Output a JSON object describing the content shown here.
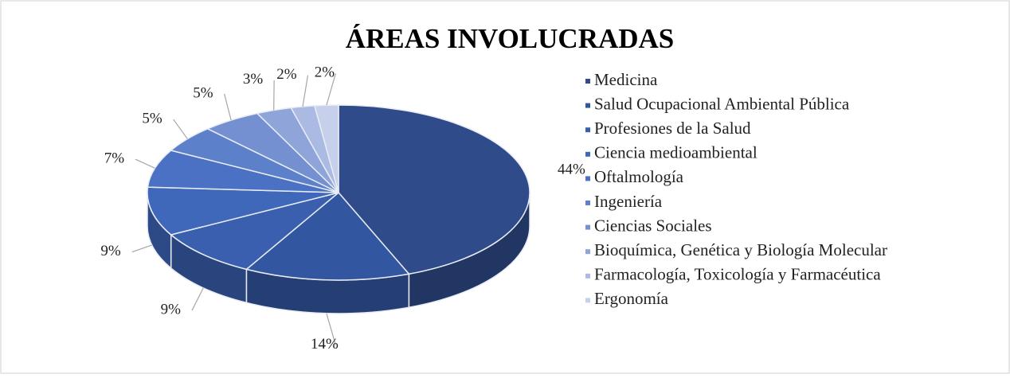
{
  "chart_data": {
    "type": "pie3d",
    "title": "ÁREAS INVOLUCRADAS",
    "categories": [
      "Medicina",
      "Salud Ocupacional Ambiental Pública",
      "Profesiones de la Salud",
      "Ciencia medioambiental",
      "Oftalmología",
      "Ingeniería",
      "Ciencias Sociales",
      "Bioquímica, Genética y Biología Molecular",
      "Farmacología, Toxicología y Farmacéutica",
      "Ergonomía"
    ],
    "values": [
      44,
      14,
      9,
      9,
      7,
      5,
      5,
      3,
      2,
      2
    ],
    "value_labels": [
      "44%",
      "14%",
      "9%",
      "9%",
      "7%",
      "5%",
      "5%",
      "3%",
      "2%",
      "2%"
    ],
    "colors": [
      "#2f4b8a",
      "#3356a0",
      "#3a5fae",
      "#3f67ba",
      "#4a71c3",
      "#5c80ca",
      "#7590d1",
      "#8fa5d9",
      "#aabae2",
      "#c6d0ea"
    ],
    "legend": "right"
  }
}
